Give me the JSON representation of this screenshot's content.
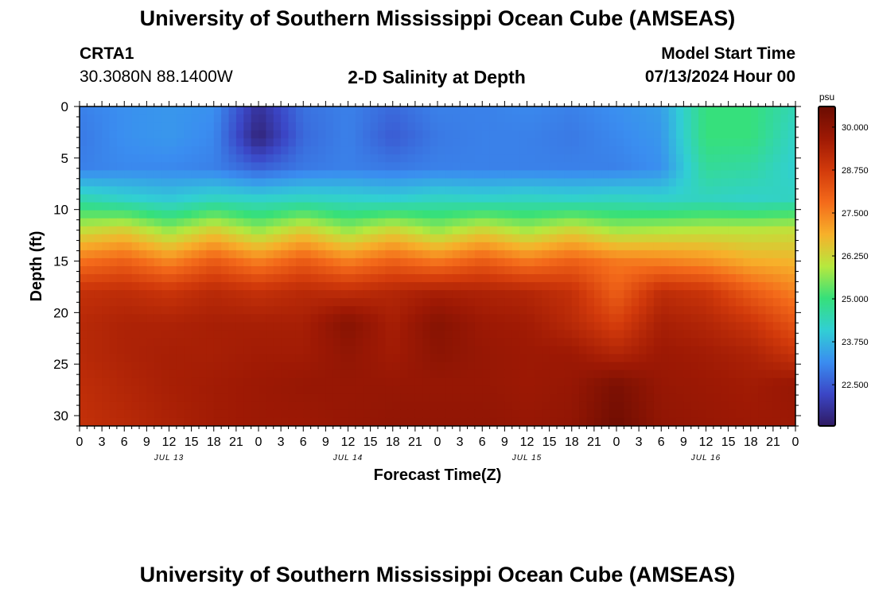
{
  "header": {
    "title": "University of Southern Mississippi Ocean Cube (AMSEAS)",
    "station_id": "CRTA1",
    "station_location": "30.3080N  88.1400W",
    "plot_title": "2-D Salinity at Depth",
    "model_start_label": "Model Start Time",
    "model_start_value": "07/13/2024 Hour 00"
  },
  "footer": {
    "title": "University of Southern Mississippi Ocean Cube (AMSEAS)"
  },
  "chart_data": {
    "type": "heatmap",
    "title": "2-D Salinity at Depth",
    "xlabel": "Forecast Time(Z)",
    "ylabel": "Depth (ft)",
    "x_ticks": [
      "0",
      "3",
      "6",
      "9",
      "12",
      "15",
      "18",
      "21",
      "0",
      "3",
      "6",
      "9",
      "12",
      "15",
      "18",
      "21",
      "0",
      "3",
      "6",
      "9",
      "12",
      "15",
      "18",
      "21",
      "0",
      "3",
      "6",
      "9",
      "12",
      "15",
      "18",
      "21",
      "0"
    ],
    "date_labels": [
      {
        "label": "JUL 13",
        "hour": 12
      },
      {
        "label": "JUL 14",
        "hour": 36
      },
      {
        "label": "JUL 15",
        "hour": 60
      },
      {
        "label": "JUL 16",
        "hour": 84
      }
    ],
    "xlim_hours": [
      0,
      96
    ],
    "ylim_ft": [
      0,
      31
    ],
    "y_ticks": [
      0,
      5,
      10,
      15,
      20,
      25,
      30
    ],
    "colorbar": {
      "unit": "psu",
      "range": [
        21.3,
        30.6
      ],
      "ticks": [
        "30.000",
        "28.750",
        "27.500",
        "26.250",
        "25.000",
        "23.750",
        "22.500"
      ],
      "tick_values": [
        30.0,
        28.75,
        27.5,
        26.25,
        25.0,
        23.75,
        22.5
      ]
    },
    "hours": [
      0,
      6,
      12,
      18,
      24,
      30,
      36,
      42,
      48,
      54,
      60,
      66,
      72,
      78,
      84,
      90,
      96
    ],
    "depths_ft": [
      0,
      3,
      6,
      9,
      12,
      15,
      18,
      21,
      24,
      27,
      31
    ],
    "salinity": [
      [
        23.0,
        23.2,
        23.3,
        23.2,
        21.8,
        22.8,
        23.0,
        22.7,
        23.0,
        23.0,
        23.1,
        23.0,
        23.2,
        23.4,
        25.0,
        25.0,
        24.4
      ],
      [
        22.9,
        23.2,
        23.3,
        23.1,
        21.5,
        22.7,
        23.0,
        22.5,
        22.9,
        23.0,
        23.0,
        22.9,
        23.1,
        23.3,
        25.0,
        25.0,
        24.2
      ],
      [
        23.0,
        23.1,
        23.1,
        23.0,
        22.6,
        22.9,
        23.0,
        22.9,
        23.0,
        23.0,
        23.0,
        23.0,
        23.0,
        23.2,
        24.7,
        24.6,
        24.1
      ],
      [
        24.5,
        24.2,
        24.0,
        24.3,
        24.2,
        24.3,
        24.2,
        24.1,
        24.3,
        24.2,
        24.3,
        24.2,
        24.3,
        24.2,
        24.3,
        24.2,
        24.3
      ],
      [
        26.1,
        26.4,
        25.7,
        26.4,
        25.7,
        26.4,
        25.7,
        26.3,
        25.7,
        26.3,
        25.8,
        26.3,
        25.8,
        25.9,
        26.0,
        26.0,
        26.1
      ],
      [
        27.7,
        28.0,
        27.4,
        28.1,
        27.5,
        28.1,
        27.5,
        28.0,
        27.6,
        28.1,
        27.6,
        28.0,
        27.6,
        27.5,
        27.3,
        26.9,
        26.8
      ],
      [
        29.0,
        29.1,
        28.9,
        29.2,
        29.0,
        29.2,
        29.1,
        29.3,
        29.5,
        29.4,
        29.3,
        29.0,
        28.0,
        29.1,
        28.9,
        28.1,
        27.5
      ],
      [
        29.2,
        29.4,
        29.4,
        29.5,
        29.5,
        29.5,
        30.1,
        29.5,
        30.1,
        29.7,
        29.6,
        29.2,
        28.6,
        29.5,
        29.3,
        28.9,
        28.2
      ],
      [
        29.2,
        29.4,
        29.5,
        29.5,
        29.6,
        29.6,
        29.9,
        29.6,
        30.0,
        29.8,
        29.7,
        29.7,
        29.3,
        29.7,
        29.6,
        29.4,
        28.9
      ],
      [
        29.1,
        29.3,
        29.5,
        29.6,
        29.7,
        29.8,
        29.8,
        29.8,
        29.8,
        29.8,
        29.7,
        29.8,
        30.3,
        29.8,
        29.7,
        29.6,
        29.8
      ],
      [
        29.0,
        29.2,
        29.4,
        29.6,
        29.7,
        29.7,
        29.8,
        29.9,
        29.9,
        29.9,
        29.8,
        29.9,
        30.5,
        29.9,
        29.8,
        29.7,
        29.7
      ]
    ]
  },
  "colors": {
    "colormap": [
      "#2f1a62",
      "#3b46c6",
      "#3a8df0",
      "#31cfd4",
      "#36e07a",
      "#b7e83e",
      "#f7b02a",
      "#f46a1a",
      "#d23a0b",
      "#9e1904",
      "#6a0c02"
    ]
  }
}
